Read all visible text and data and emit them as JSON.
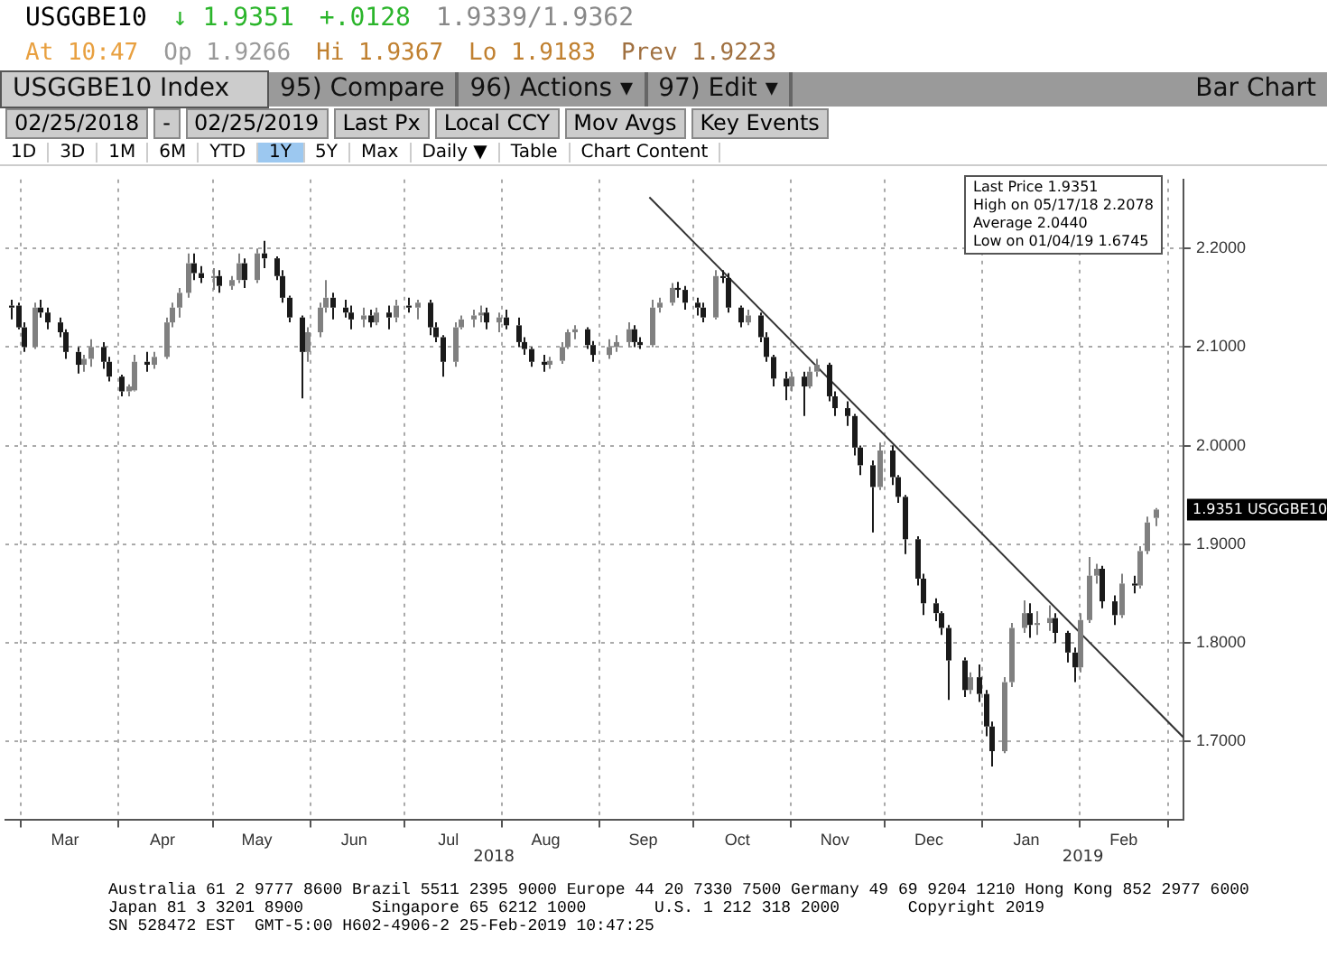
{
  "chart_data": {
    "type": "candlestick",
    "title": "USGGBE10 Index",
    "colors": [
      "#1a1a1a",
      "#1a1a1a",
      "#1a1a1a",
      "#808080",
      "#1a1a1a",
      "#1a1a1a",
      "#1a1a1a",
      "#1a1a1a",
      "#1a1a1a",
      "#808080",
      "#808080",
      "#1a1a1a",
      "#1a1a1a",
      "#1a1a1a",
      "#808080",
      "#808080",
      "#1a1a1a",
      "#808080",
      "#808080",
      "#808080",
      "#808080",
      "#808080",
      "#1a1a1a",
      "#1a1a1a",
      "#808080",
      "#1a1a1a",
      "#808080",
      "#808080",
      "#1a1a1a",
      "#808080",
      "#1a1a1a",
      "#1a1a1a",
      "#1a1a1a",
      "#1a1a1a",
      "#1a1a1a",
      "#808080",
      "#808080",
      "#808080",
      "#1a1a1a",
      "#1a1a1a",
      "#1a1a1a",
      "#808080",
      "#1a1a1a",
      "#808080",
      "#1a1a1a",
      "#808080",
      "#1a1a1a",
      "#808080",
      "#1a1a1a",
      "#1a1a1a",
      "#1a1a1a",
      "#808080",
      "#808080",
      "#808080",
      "#808080",
      "#1a1a1a",
      "#808080",
      "#1a1a1a",
      "#1a1a1a",
      "#1a1a1a",
      "#1a1a1a",
      "#1a1a1a",
      "#808080",
      "#808080",
      "#808080",
      "#808080",
      "#1a1a1a",
      "#1a1a1a",
      "#808080",
      "#808080",
      "#808080",
      "#1a1a1a",
      "#1a1a1a",
      "#808080",
      "#808080",
      "#808080",
      "#1a1a1a",
      "#1a1a1a",
      "#1a1a1a",
      "#1a1a1a",
      "#808080",
      "#1a1a1a",
      "#1a1a1a",
      "#1a1a1a",
      "#808080",
      "#1a1a1a",
      "#1a1a1a",
      "#1a1a1a",
      "#1a1a1a",
      "#808080",
      "#1a1a1a",
      "#808080",
      "#808080",
      "#1a1a1a",
      "#1a1a1a",
      "#1a1a1a",
      "#1a1a1a",
      "#1a1a1a",
      "#1a1a1a",
      "#808080",
      "#1a1a1a",
      "#1a1a1a",
      "#1a1a1a",
      "#1a1a1a",
      "#1a1a1a",
      "#1a1a1a",
      "#1a1a1a",
      "#1a1a1a",
      "#1a1a1a",
      "#808080",
      "#1a1a1a",
      "#1a1a1a",
      "#1a1a1a",
      "#808080",
      "#808080",
      "#808080",
      "#1a1a1a",
      "#808080",
      "#808080",
      "#1a1a1a",
      "#1a1a1a",
      "#1a1a1a",
      "#808080",
      "#808080",
      "#808080",
      "#1a1a1a",
      "#1a1a1a",
      "#808080",
      "#1a1a1a",
      "#808080",
      "#808080",
      "#808080"
    ],
    "annotations": [
      "USGGBE10",
      "↓ 1.9351",
      "+.0128",
      "1.9339/1.9362",
      "At 10:47",
      "Op 1.9266",
      "Hi 1.9367",
      "Lo 1.9183",
      "Prev 1.9223",
      "95) Compare",
      "96) Actions ▾",
      "97) Edit ▾",
      "Bar Chart",
      "02/25/2018",
      "-",
      "02/25/2019",
      "Last Px",
      "Local CCY",
      "Mov Avgs",
      "Key Events",
      "1D",
      "3D",
      "1M",
      "6M",
      "YTD",
      "1Y",
      "5Y",
      "Max",
      "Daily ▼",
      "Table",
      "Chart Content",
      "Last Price 1.9351",
      "High on 05/17/18 2.2078",
      "Average 2.0440",
      "Low on 01/04/19 1.6745",
      "1.9351 USGGBE10",
      "2018",
      "2019",
      "Australia 61 2 9777 8600 Brazil 5511 2395 9000 Europe 44 20 7330 7500 Germany 49 69 9204 1210 Hong Kong 852 2977 6000",
      "Japan 81 3 3201 8900       Singapore 65 6212 1000       U.S. 1 212 318 2000       Copyright 2019",
      "SN 528472 EST  GMT-5:00 H602-4906-2 25-Feb-2019 10:47:25"
    ],
    "x": [
      "2018-02-26",
      "2018-02-28",
      "2018-03-02",
      "2018-03-05",
      "2018-03-07",
      "2018-03-09",
      "2018-03-13",
      "2018-03-15",
      "2018-03-19",
      "2018-03-21",
      "2018-03-23",
      "2018-03-27",
      "2018-03-29",
      "2018-04-02",
      "2018-04-04",
      "2018-04-06",
      "2018-04-10",
      "2018-04-12",
      "2018-04-16",
      "2018-04-18",
      "2018-04-20",
      "2018-04-23",
      "2018-04-25",
      "2018-04-27",
      "2018-05-01",
      "2018-05-03",
      "2018-05-07",
      "2018-05-09",
      "2018-05-11",
      "2018-05-15",
      "2018-05-17",
      "2018-05-21",
      "2018-05-23",
      "2018-05-25",
      "2018-05-29",
      "2018-05-31",
      "2018-06-04",
      "2018-06-06",
      "2018-06-08",
      "2018-06-12",
      "2018-06-14",
      "2018-06-18",
      "2018-06-20",
      "2018-06-22",
      "2018-06-26",
      "2018-06-28",
      "2018-07-02",
      "2018-07-05",
      "2018-07-09",
      "2018-07-11",
      "2018-07-13",
      "2018-07-17",
      "2018-07-19",
      "2018-07-23",
      "2018-07-25",
      "2018-07-27",
      "2018-07-31",
      "2018-08-02",
      "2018-08-06",
      "2018-08-08",
      "2018-08-10",
      "2018-08-14",
      "2018-08-16",
      "2018-08-20",
      "2018-08-22",
      "2018-08-24",
      "2018-08-28",
      "2018-08-30",
      "2018-09-04",
      "2018-09-06",
      "2018-09-10",
      "2018-09-12",
      "2018-09-14",
      "2018-09-18",
      "2018-09-20",
      "2018-09-24",
      "2018-09-26",
      "2018-09-28",
      "2018-10-02",
      "2018-10-04",
      "2018-10-08",
      "2018-10-10",
      "2018-10-12",
      "2018-10-16",
      "2018-10-18",
      "2018-10-22",
      "2018-10-24",
      "2018-10-26",
      "2018-10-30",
      "2018-11-01",
      "2018-11-05",
      "2018-11-07",
      "2018-11-09",
      "2018-11-13",
      "2018-11-15",
      "2018-11-19",
      "2018-11-21",
      "2018-11-23",
      "2018-11-27",
      "2018-11-29",
      "2018-12-03",
      "2018-12-05",
      "2018-12-07",
      "2018-12-11",
      "2018-12-13",
      "2018-12-17",
      "2018-12-19",
      "2018-12-21",
      "2018-12-26",
      "2018-12-28",
      "2018-12-31",
      "2019-01-02",
      "2019-01-04",
      "2019-01-08",
      "2019-01-10",
      "2019-01-14",
      "2019-01-16",
      "2019-01-18",
      "2019-01-22",
      "2019-01-24",
      "2019-01-28",
      "2019-01-30",
      "2019-02-01",
      "2019-02-04",
      "2019-02-06",
      "2019-02-08",
      "2019-02-12",
      "2019-02-14",
      "2019-02-18",
      "2019-02-20",
      "2019-02-22",
      "2019-02-25"
    ],
    "ohlc": [
      [
        2.14,
        2.148,
        2.128,
        2.142
      ],
      [
        2.142,
        2.145,
        2.118,
        2.12
      ],
      [
        2.12,
        2.125,
        2.095,
        2.1
      ],
      [
        2.1,
        2.145,
        2.098,
        2.14
      ],
      [
        2.14,
        2.148,
        2.13,
        2.135
      ],
      [
        2.135,
        2.14,
        2.118,
        2.125
      ],
      [
        2.125,
        2.13,
        2.11,
        2.115
      ],
      [
        2.115,
        2.118,
        2.088,
        2.095
      ],
      [
        2.095,
        2.1,
        2.073,
        2.082
      ],
      [
        2.082,
        2.092,
        2.075,
        2.088
      ],
      [
        2.088,
        2.108,
        2.08,
        2.1
      ],
      [
        2.1,
        2.105,
        2.078,
        2.085
      ],
      [
        2.085,
        2.09,
        2.065,
        2.07
      ],
      [
        2.07,
        2.072,
        2.05,
        2.055
      ],
      [
        2.055,
        2.062,
        2.05,
        2.06
      ],
      [
        2.056,
        2.092,
        2.055,
        2.085
      ],
      [
        2.085,
        2.095,
        2.075,
        2.082
      ],
      [
        2.082,
        2.095,
        2.078,
        2.09
      ],
      [
        2.09,
        2.13,
        2.088,
        2.125
      ],
      [
        2.125,
        2.145,
        2.12,
        2.14
      ],
      [
        2.14,
        2.16,
        2.13,
        2.155
      ],
      [
        2.155,
        2.195,
        2.15,
        2.185
      ],
      [
        2.185,
        2.195,
        2.168,
        2.175
      ],
      [
        2.175,
        2.182,
        2.165,
        2.17
      ],
      [
        2.17,
        2.18,
        2.158,
        2.172
      ],
      [
        2.172,
        2.178,
        2.155,
        2.162
      ],
      [
        2.162,
        2.172,
        2.158,
        2.168
      ],
      [
        2.168,
        2.195,
        2.165,
        2.185
      ],
      [
        2.185,
        2.19,
        2.16,
        2.168
      ],
      [
        2.168,
        2.2,
        2.165,
        2.195
      ],
      [
        2.195,
        2.2078,
        2.18,
        2.19
      ],
      [
        2.19,
        2.192,
        2.168,
        2.172
      ],
      [
        2.172,
        2.178,
        2.145,
        2.15
      ],
      [
        2.15,
        2.152,
        2.125,
        2.13
      ],
      [
        2.13,
        2.132,
        2.048,
        2.095
      ],
      [
        2.095,
        2.12,
        2.085,
        2.115
      ],
      [
        2.115,
        2.145,
        2.11,
        2.14
      ],
      [
        2.14,
        2.168,
        2.135,
        2.15
      ],
      [
        2.15,
        2.155,
        2.128,
        2.14
      ],
      [
        2.14,
        2.148,
        2.13,
        2.135
      ],
      [
        2.135,
        2.142,
        2.118,
        2.128
      ],
      [
        2.128,
        2.14,
        2.12,
        2.132
      ],
      [
        2.132,
        2.138,
        2.12,
        2.125
      ],
      [
        2.125,
        2.14,
        2.122,
        2.135
      ],
      [
        2.135,
        2.142,
        2.118,
        2.13
      ],
      [
        2.13,
        2.148,
        2.125,
        2.142
      ],
      [
        2.142,
        2.15,
        2.135,
        2.14
      ],
      [
        2.14,
        2.148,
        2.128,
        2.145
      ],
      [
        2.145,
        2.148,
        2.112,
        2.12
      ],
      [
        2.12,
        2.125,
        2.105,
        2.11
      ],
      [
        2.11,
        2.112,
        2.07,
        2.085
      ],
      [
        2.085,
        2.125,
        2.08,
        2.12
      ],
      [
        2.12,
        2.132,
        2.118,
        2.128
      ],
      [
        2.128,
        2.138,
        2.12,
        2.132
      ],
      [
        2.132,
        2.142,
        2.125,
        2.135
      ],
      [
        2.135,
        2.14,
        2.118,
        2.125
      ],
      [
        2.125,
        2.135,
        2.115,
        2.13
      ],
      [
        2.13,
        2.138,
        2.118,
        2.122
      ],
      [
        2.122,
        2.13,
        2.1,
        2.105
      ],
      [
        2.105,
        2.11,
        2.092,
        2.098
      ],
      [
        2.098,
        2.1,
        2.08,
        2.085
      ],
      [
        2.085,
        2.092,
        2.075,
        2.082
      ],
      [
        2.082,
        2.09,
        2.078,
        2.086
      ],
      [
        2.086,
        2.105,
        2.083,
        2.1
      ],
      [
        2.1,
        2.118,
        2.098,
        2.115
      ],
      [
        2.115,
        2.122,
        2.108,
        2.118
      ],
      [
        2.118,
        2.12,
        2.098,
        2.102
      ],
      [
        2.102,
        2.106,
        2.085,
        2.092
      ],
      [
        2.092,
        2.108,
        2.088,
        2.1
      ],
      [
        2.1,
        2.112,
        2.095,
        2.105
      ],
      [
        2.105,
        2.125,
        2.1,
        2.118
      ],
      [
        2.118,
        2.122,
        2.1,
        2.105
      ],
      [
        2.105,
        2.11,
        2.098,
        2.102
      ],
      [
        2.102,
        2.148,
        2.1,
        2.14
      ],
      [
        2.14,
        2.15,
        2.135,
        2.145
      ],
      [
        2.145,
        2.165,
        2.142,
        2.16
      ],
      [
        2.16,
        2.166,
        2.15,
        2.158
      ],
      [
        2.158,
        2.162,
        2.138,
        2.145
      ],
      [
        2.145,
        2.15,
        2.132,
        2.14
      ],
      [
        2.14,
        2.145,
        2.125,
        2.13
      ],
      [
        2.13,
        2.178,
        2.128,
        2.172
      ],
      [
        2.172,
        2.178,
        2.165,
        2.17
      ],
      [
        2.17,
        2.175,
        2.135,
        2.14
      ],
      [
        2.14,
        2.142,
        2.12,
        2.125
      ],
      [
        2.125,
        2.138,
        2.122,
        2.132
      ],
      [
        2.132,
        2.135,
        2.105,
        2.11
      ],
      [
        2.11,
        2.115,
        2.085,
        2.09
      ],
      [
        2.09,
        2.092,
        2.06,
        2.068
      ],
      [
        2.068,
        2.075,
        2.046,
        2.06
      ],
      [
        2.06,
        2.075,
        2.055,
        2.07
      ],
      [
        2.07,
        2.075,
        2.03,
        2.06
      ],
      [
        2.06,
        2.08,
        2.058,
        2.075
      ],
      [
        2.075,
        2.088,
        2.07,
        2.082
      ],
      [
        2.082,
        2.084,
        2.045,
        2.05
      ],
      [
        2.05,
        2.055,
        2.03,
        2.038
      ],
      [
        2.038,
        2.045,
        2.02,
        2.03
      ],
      [
        2.03,
        2.032,
        1.99,
        1.998
      ],
      [
        1.998,
        2.0,
        1.97,
        1.98
      ],
      [
        1.98,
        1.985,
        1.912,
        1.958
      ],
      [
        1.958,
        2.003,
        1.955,
        1.995
      ],
      [
        1.995,
        2.0,
        1.96,
        1.968
      ],
      [
        1.968,
        1.97,
        1.942,
        1.948
      ],
      [
        1.948,
        1.95,
        1.89,
        1.905
      ],
      [
        1.905,
        1.908,
        1.858,
        1.865
      ],
      [
        1.865,
        1.87,
        1.828,
        1.84
      ],
      [
        1.84,
        1.845,
        1.822,
        1.83
      ],
      [
        1.83,
        1.832,
        1.808,
        1.815
      ],
      [
        1.815,
        1.818,
        1.742,
        1.782
      ],
      [
        1.782,
        1.785,
        1.745,
        1.752
      ],
      [
        1.752,
        1.77,
        1.748,
        1.765
      ],
      [
        1.765,
        1.778,
        1.74,
        1.748
      ],
      [
        1.748,
        1.752,
        1.705,
        1.715
      ],
      [
        1.715,
        1.72,
        1.6745,
        1.69
      ],
      [
        1.69,
        1.765,
        1.688,
        1.76
      ],
      [
        1.76,
        1.82,
        1.755,
        1.815
      ],
      [
        1.815,
        1.843,
        1.81,
        1.83
      ],
      [
        1.83,
        1.84,
        1.805,
        1.818
      ],
      [
        1.818,
        1.832,
        1.808,
        1.82
      ],
      [
        1.82,
        1.838,
        1.812,
        1.825
      ],
      [
        1.825,
        1.83,
        1.8,
        1.81
      ],
      [
        1.81,
        1.812,
        1.78,
        1.79
      ],
      [
        1.79,
        1.795,
        1.76,
        1.775
      ],
      [
        1.775,
        1.83,
        1.77,
        1.823
      ],
      [
        1.823,
        1.887,
        1.82,
        1.868
      ],
      [
        1.868,
        1.88,
        1.86,
        1.875
      ],
      [
        1.875,
        1.878,
        1.835,
        1.842
      ],
      [
        1.842,
        1.848,
        1.818,
        1.828
      ],
      [
        1.828,
        1.87,
        1.825,
        1.86
      ],
      [
        1.86,
        1.868,
        1.85,
        1.858
      ],
      [
        1.858,
        1.898,
        1.855,
        1.893
      ],
      [
        1.893,
        1.928,
        1.89,
        1.922
      ],
      [
        1.9266,
        1.9367,
        1.9183,
        1.9351
      ]
    ],
    "series": [
      {
        "type": "line",
        "color": "#333333",
        "x": [
          "2018-09-17",
          "2019-03-06"
        ],
        "values": [
          2.252,
          1.704
        ]
      }
    ],
    "xlim": [
      "2018-02-24",
      "2019-03-06"
    ],
    "xticks": [
      {
        "value": "2018-03-01",
        "label": null
      },
      {
        "value": "2018-03-15",
        "label": "Mar"
      },
      {
        "value": "2018-04-01",
        "label": null
      },
      {
        "value": "2018-04-15",
        "label": "Apr"
      },
      {
        "value": "2018-05-01",
        "label": null
      },
      {
        "value": "2018-05-15",
        "label": "May"
      },
      {
        "value": "2018-06-01",
        "label": null
      },
      {
        "value": "2018-06-15",
        "label": "Jun"
      },
      {
        "value": "2018-07-01",
        "label": null
      },
      {
        "value": "2018-07-15",
        "label": "Jul"
      },
      {
        "value": "2018-08-01",
        "label": null
      },
      {
        "value": "2018-08-15",
        "label": "Aug"
      },
      {
        "value": "2018-09-01",
        "label": null
      },
      {
        "value": "2018-09-15",
        "label": "Sep"
      },
      {
        "value": "2018-10-01",
        "label": null
      },
      {
        "value": "2018-10-15",
        "label": "Oct"
      },
      {
        "value": "2018-11-01",
        "label": null
      },
      {
        "value": "2018-11-15",
        "label": "Nov"
      },
      {
        "value": "2018-12-01",
        "label": null
      },
      {
        "value": "2018-12-15",
        "label": "Dec"
      },
      {
        "value": "2019-01-01",
        "label": null
      },
      {
        "value": "2019-01-15",
        "label": "Jan"
      },
      {
        "value": "2019-02-01",
        "label": null
      },
      {
        "value": "2019-02-15",
        "label": "Feb"
      },
      {
        "value": "2019-03-01",
        "label": null
      }
    ],
    "ylim": [
      1.62,
      2.27
    ],
    "yticks": [
      {
        "value": 1.7,
        "label": "1.7000"
      },
      {
        "value": 1.8,
        "label": "1.8000"
      },
      {
        "value": 1.9,
        "label": "1.9000"
      },
      {
        "value": 2.0,
        "label": "2.0000"
      },
      {
        "value": 2.1,
        "label": "2.1000"
      },
      {
        "value": 2.2,
        "label": "2.2000"
      }
    ],
    "grid": true
  }
}
